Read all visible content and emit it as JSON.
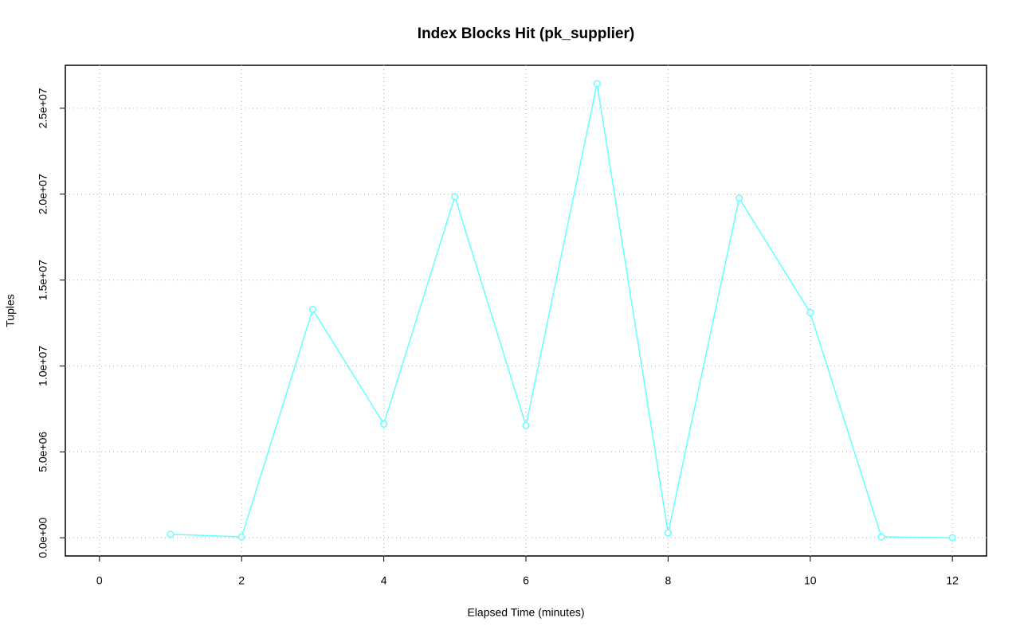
{
  "chart_data": {
    "type": "line",
    "title": "Index Blocks Hit (pk_supplier)",
    "x_label": "Elapsed Time (minutes)",
    "y_label": "Tuples",
    "series": [
      {
        "name": "pk_supplier",
        "color": "#66ffff",
        "x": [
          1,
          2,
          3,
          4,
          5,
          6,
          7,
          8,
          9,
          10,
          11,
          12
        ],
        "values": [
          200000,
          50000,
          13290000,
          6620000,
          19860000,
          6530000,
          26430000,
          280000,
          19770000,
          13100000,
          50000,
          0
        ]
      }
    ],
    "xlim": [
      -0.48,
      12.48
    ],
    "xticks": [
      0,
      2,
      4,
      6,
      8,
      10,
      12
    ],
    "ylim": [
      -1060000,
      27500000
    ],
    "yticks": [
      {
        "value": 0,
        "label": "0.0e+00"
      },
      {
        "value": 5000000,
        "label": "5.0e+06"
      },
      {
        "value": 10000000,
        "label": "1.0e+07"
      },
      {
        "value": 15000000,
        "label": "1.5e+07"
      },
      {
        "value": 20000000,
        "label": "2.0e+07"
      },
      {
        "value": 25000000,
        "label": "2.5e+07"
      }
    ],
    "grid": true
  }
}
